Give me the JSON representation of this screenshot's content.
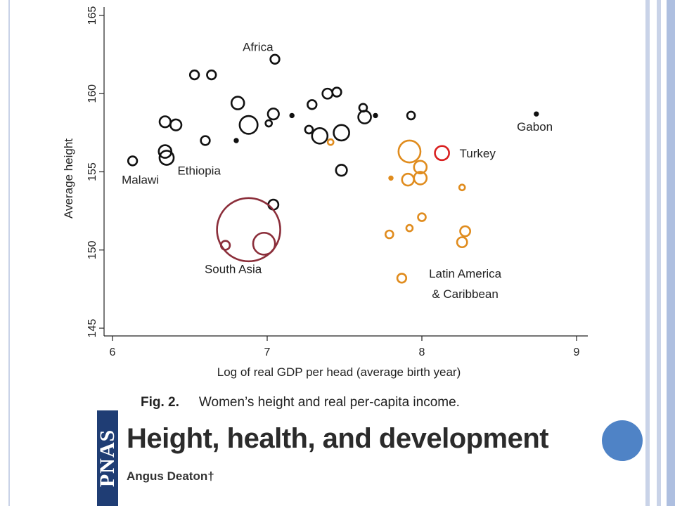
{
  "chart_data": {
    "type": "scatter",
    "title": "",
    "xlabel": "Log of real GDP per head (average birth year)",
    "ylabel": "Average height",
    "xlim": [
      6,
      9
    ],
    "ylim": [
      145,
      165
    ],
    "xticks": [
      "6",
      "7",
      "8",
      "9"
    ],
    "yticks": [
      "145",
      "150",
      "155",
      "160",
      "165"
    ],
    "grid": false,
    "legend": "none",
    "colors": {
      "Africa": "#111111",
      "Latin America & Caribbean": "#e08c1e",
      "South Asia": "#8b2e3a",
      "Turkey": "#d92020"
    },
    "series": [
      {
        "name": "Africa",
        "points": [
          {
            "x": 6.13,
            "y": 155.7,
            "size": 2
          },
          {
            "x": 6.34,
            "y": 156.3,
            "size": 4
          },
          {
            "x": 6.35,
            "y": 155.9,
            "size": 5
          },
          {
            "x": 6.34,
            "y": 158.2,
            "size": 3
          },
          {
            "x": 6.41,
            "y": 158.0,
            "size": 3
          },
          {
            "x": 6.53,
            "y": 161.2,
            "size": 2
          },
          {
            "x": 6.6,
            "y": 157.0,
            "size": 2
          },
          {
            "x": 6.64,
            "y": 161.2,
            "size": 2
          },
          {
            "x": 6.8,
            "y": 157.0,
            "size": 0.5
          },
          {
            "x": 6.81,
            "y": 159.4,
            "size": 4
          },
          {
            "x": 6.88,
            "y": 158.0,
            "size": 8
          },
          {
            "x": 7.01,
            "y": 158.1,
            "size": 1
          },
          {
            "x": 7.04,
            "y": 158.7,
            "size": 3
          },
          {
            "x": 7.05,
            "y": 162.2,
            "size": 2
          },
          {
            "x": 7.04,
            "y": 152.9,
            "size": 2.5
          },
          {
            "x": 7.16,
            "y": 158.6,
            "size": 0.5
          },
          {
            "x": 7.27,
            "y": 157.7,
            "size": 1.5
          },
          {
            "x": 7.29,
            "y": 159.3,
            "size": 2
          },
          {
            "x": 7.34,
            "y": 157.3,
            "size": 6
          },
          {
            "x": 7.39,
            "y": 160.0,
            "size": 2.5
          },
          {
            "x": 7.45,
            "y": 160.1,
            "size": 2
          },
          {
            "x": 7.48,
            "y": 157.5,
            "size": 6
          },
          {
            "x": 7.48,
            "y": 155.1,
            "size": 3
          },
          {
            "x": 7.62,
            "y": 159.1,
            "size": 1.5
          },
          {
            "x": 7.63,
            "y": 158.5,
            "size": 4
          },
          {
            "x": 7.7,
            "y": 158.6,
            "size": 0.5
          },
          {
            "x": 7.93,
            "y": 158.6,
            "size": 1.5
          },
          {
            "x": 8.74,
            "y": 158.7,
            "size": 0.5
          }
        ]
      },
      {
        "name": "Latin America & Caribbean",
        "points": [
          {
            "x": 7.41,
            "y": 156.9,
            "size": 0.8
          },
          {
            "x": 7.8,
            "y": 154.6,
            "size": 0.3
          },
          {
            "x": 7.79,
            "y": 151.0,
            "size": 1.5
          },
          {
            "x": 7.87,
            "y": 148.2,
            "size": 2
          },
          {
            "x": 7.92,
            "y": 156.3,
            "size": 12
          },
          {
            "x": 7.91,
            "y": 154.5,
            "size": 3.5
          },
          {
            "x": 7.92,
            "y": 151.4,
            "size": 1
          },
          {
            "x": 7.99,
            "y": 155.3,
            "size": 4
          },
          {
            "x": 7.99,
            "y": 154.6,
            "size": 4
          },
          {
            "x": 8.0,
            "y": 152.1,
            "size": 1.5
          },
          {
            "x": 8.26,
            "y": 154.0,
            "size": 0.8
          },
          {
            "x": 8.28,
            "y": 151.2,
            "size": 2.5
          },
          {
            "x": 8.26,
            "y": 150.5,
            "size": 2.5
          }
        ]
      },
      {
        "name": "South Asia",
        "points": [
          {
            "x": 6.73,
            "y": 150.3,
            "size": 2
          },
          {
            "x": 6.88,
            "y": 151.3,
            "size": 100
          },
          {
            "x": 6.98,
            "y": 150.4,
            "size": 12
          }
        ]
      },
      {
        "name": "Turkey",
        "points": [
          {
            "x": 8.13,
            "y": 156.2,
            "size": 5
          }
        ]
      }
    ],
    "annotations": [
      {
        "text": "Africa",
        "x": 6.94,
        "y": 163.0
      },
      {
        "text": "Malawi",
        "x": 6.18,
        "y": 154.5
      },
      {
        "text": "Ethiopia",
        "x": 6.56,
        "y": 155.1
      },
      {
        "text": "South Asia",
        "x": 6.78,
        "y": 148.8
      },
      {
        "text": "Turkey",
        "x": 8.36,
        "y": 156.2
      },
      {
        "text": "Gabon",
        "x": 8.73,
        "y": 157.9
      },
      {
        "text": "Latin America",
        "x": 8.28,
        "y": 148.5
      },
      {
        "text": "& Caribbean",
        "x": 8.28,
        "y": 147.2
      }
    ]
  },
  "caption": {
    "fig_label": "Fig. 2.",
    "text": "Women’s height and real per-capita income."
  },
  "article": {
    "logo": "PNAS",
    "title": "Height, health, and development",
    "author": "Angus Deaton†"
  }
}
